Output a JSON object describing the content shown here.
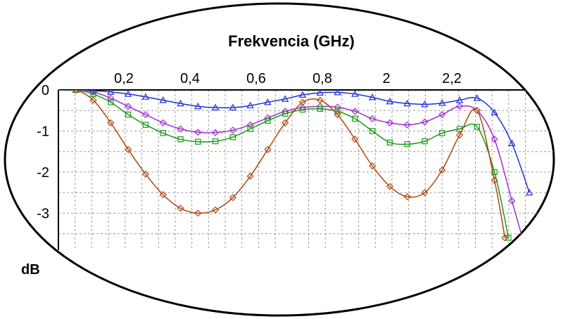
{
  "chart_data": {
    "type": "line",
    "title": "Frekvencia (GHz)",
    "xlabel": "Frekvencia (GHz)",
    "ylabel": "dB",
    "x_ticks": [
      "0,2",
      "0,4",
      "0,6",
      "0,8",
      "2",
      "2,2"
    ],
    "y_ticks": [
      "0",
      "-1",
      "-2",
      "-3"
    ],
    "ylim": [
      -3.9,
      0
    ],
    "grid": true,
    "series": [
      {
        "color": "#1f2fd8",
        "marker": "triangle",
        "points": [
          [
            0,
            0
          ],
          [
            0.05,
            0
          ],
          [
            0.1,
            -0.02
          ],
          [
            0.15,
            -0.05
          ],
          [
            0.2,
            -0.1
          ],
          [
            0.25,
            -0.17
          ],
          [
            0.3,
            -0.25
          ],
          [
            0.35,
            -0.33
          ],
          [
            0.4,
            -0.4
          ],
          [
            0.45,
            -0.43
          ],
          [
            0.5,
            -0.43
          ],
          [
            0.55,
            -0.38
          ],
          [
            0.6,
            -0.3
          ],
          [
            0.65,
            -0.22
          ],
          [
            0.7,
            -0.12
          ],
          [
            0.75,
            -0.07
          ],
          [
            0.8,
            -0.06
          ],
          [
            0.85,
            -0.1
          ],
          [
            0.9,
            -0.18
          ],
          [
            0.95,
            -0.28
          ],
          [
            1.0,
            -0.33
          ],
          [
            1.05,
            -0.35
          ],
          [
            1.1,
            -0.32
          ],
          [
            1.15,
            -0.25
          ],
          [
            1.2,
            -0.2
          ],
          [
            1.25,
            -0.55
          ],
          [
            1.3,
            -1.3
          ],
          [
            1.35,
            -2.5
          ]
        ]
      },
      {
        "color": "#a030d0",
        "marker": "diamond",
        "points": [
          [
            0,
            0
          ],
          [
            0.05,
            0
          ],
          [
            0.1,
            -0.05
          ],
          [
            0.15,
            -0.2
          ],
          [
            0.2,
            -0.4
          ],
          [
            0.25,
            -0.6
          ],
          [
            0.3,
            -0.8
          ],
          [
            0.35,
            -0.95
          ],
          [
            0.4,
            -1.03
          ],
          [
            0.45,
            -1.04
          ],
          [
            0.5,
            -0.98
          ],
          [
            0.55,
            -0.85
          ],
          [
            0.6,
            -0.68
          ],
          [
            0.65,
            -0.52
          ],
          [
            0.7,
            -0.43
          ],
          [
            0.75,
            -0.4
          ],
          [
            0.8,
            -0.42
          ],
          [
            0.85,
            -0.52
          ],
          [
            0.9,
            -0.7
          ],
          [
            0.95,
            -0.8
          ],
          [
            1.0,
            -0.85
          ],
          [
            1.05,
            -0.78
          ],
          [
            1.1,
            -0.6
          ],
          [
            1.15,
            -0.4
          ],
          [
            1.2,
            -0.5
          ],
          [
            1.25,
            -1.2
          ],
          [
            1.3,
            -2.7
          ],
          [
            1.33,
            -3.6
          ]
        ]
      },
      {
        "color": "#1a9a1a",
        "marker": "square",
        "points": [
          [
            0,
            0
          ],
          [
            0.05,
            0
          ],
          [
            0.1,
            -0.1
          ],
          [
            0.15,
            -0.3
          ],
          [
            0.2,
            -0.6
          ],
          [
            0.25,
            -0.85
          ],
          [
            0.3,
            -1.05
          ],
          [
            0.35,
            -1.2
          ],
          [
            0.4,
            -1.26
          ],
          [
            0.45,
            -1.25
          ],
          [
            0.5,
            -1.15
          ],
          [
            0.55,
            -0.95
          ],
          [
            0.6,
            -0.75
          ],
          [
            0.65,
            -0.58
          ],
          [
            0.7,
            -0.48
          ],
          [
            0.75,
            -0.46
          ],
          [
            0.8,
            -0.52
          ],
          [
            0.85,
            -0.7
          ],
          [
            0.9,
            -1.0
          ],
          [
            0.95,
            -1.28
          ],
          [
            1.0,
            -1.32
          ],
          [
            1.05,
            -1.25
          ],
          [
            1.1,
            -1.05
          ],
          [
            1.15,
            -0.95
          ],
          [
            1.2,
            -0.9
          ],
          [
            1.25,
            -2.0
          ],
          [
            1.29,
            -3.6
          ]
        ]
      },
      {
        "color": "#b04510",
        "marker": "diamond",
        "points": [
          [
            0,
            0
          ],
          [
            0.05,
            0
          ],
          [
            0.1,
            -0.25
          ],
          [
            0.15,
            -0.8
          ],
          [
            0.2,
            -1.45
          ],
          [
            0.25,
            -2.05
          ],
          [
            0.3,
            -2.55
          ],
          [
            0.35,
            -2.88
          ],
          [
            0.4,
            -3.0
          ],
          [
            0.45,
            -2.92
          ],
          [
            0.5,
            -2.62
          ],
          [
            0.55,
            -2.1
          ],
          [
            0.6,
            -1.45
          ],
          [
            0.65,
            -0.8
          ],
          [
            0.7,
            -0.3
          ],
          [
            0.75,
            -0.25
          ],
          [
            0.8,
            -0.6
          ],
          [
            0.85,
            -1.2
          ],
          [
            0.9,
            -1.85
          ],
          [
            0.95,
            -2.35
          ],
          [
            1.0,
            -2.6
          ],
          [
            1.05,
            -2.5
          ],
          [
            1.1,
            -1.95
          ],
          [
            1.15,
            -1.1
          ],
          [
            1.2,
            -0.5
          ],
          [
            1.25,
            -2.2
          ],
          [
            1.28,
            -3.6
          ]
        ]
      }
    ]
  }
}
